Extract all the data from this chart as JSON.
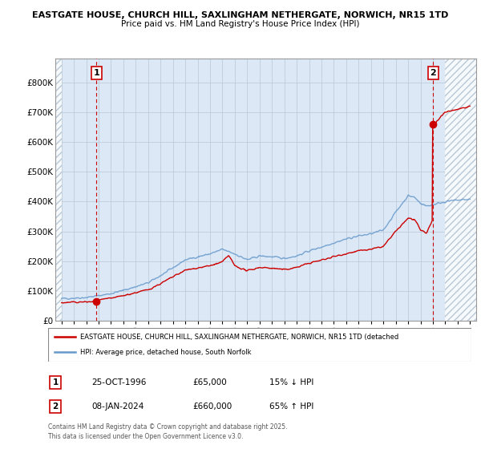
{
  "title_line1": "EASTGATE HOUSE, CHURCH HILL, SAXLINGHAM NETHERGATE, NORWICH, NR15 1TD",
  "title_line2": "Price paid vs. HM Land Registry's House Price Index (HPI)",
  "legend_label_red": "EASTGATE HOUSE, CHURCH HILL, SAXLINGHAM NETHERGATE, NORWICH, NR15 1TD (detached",
  "legend_label_blue": "HPI: Average price, detached house, South Norfolk",
  "sale1_label": "1",
  "sale1_date": "25-OCT-1996",
  "sale1_price": "£65,000",
  "sale1_hpi": "15% ↓ HPI",
  "sale2_label": "2",
  "sale2_date": "08-JAN-2024",
  "sale2_price": "£660,000",
  "sale2_hpi": "65% ↑ HPI",
  "footer": "Contains HM Land Registry data © Crown copyright and database right 2025.\nThis data is licensed under the Open Government Licence v3.0.",
  "xmin": 1993.5,
  "xmax": 2027.5,
  "ymin": 0,
  "ymax": 880000,
  "yticks": [
    0,
    100000,
    200000,
    300000,
    400000,
    500000,
    600000,
    700000,
    800000
  ],
  "ytick_labels": [
    "£0",
    "£100K",
    "£200K",
    "£300K",
    "£400K",
    "£500K",
    "£600K",
    "£700K",
    "£800K"
  ],
  "sale1_x": 1996.82,
  "sale1_y": 65000,
  "sale2_x": 2024.03,
  "sale2_y": 660000,
  "red_line_color": "#cc0000",
  "blue_line_color": "#6699cc",
  "marker_color": "#cc0000",
  "plot_bg_color": "#dce8f5",
  "hatch_right_start": 2025.0,
  "hatch_left_end": 1994.0
}
